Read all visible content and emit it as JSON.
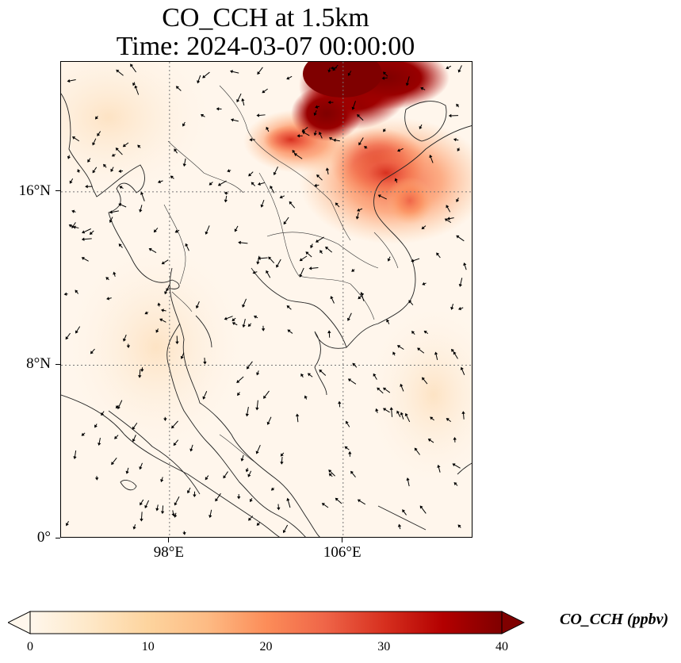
{
  "title": {
    "line1": "CO_CCH at 1.5km",
    "line2": "Time: 2024-03-07 00:00:00"
  },
  "map": {
    "lat_range": [
      0,
      22
    ],
    "lon_range": [
      93,
      112
    ],
    "lat_ticks": [
      {
        "value": 16,
        "label": "16°N"
      },
      {
        "value": 8,
        "label": "8°N"
      },
      {
        "value": 0,
        "label": "0°"
      }
    ],
    "lon_ticks": [
      {
        "value": 98,
        "label": "98°E"
      },
      {
        "value": 106,
        "label": "106°E"
      }
    ],
    "gridlines": "dotted",
    "layers": [
      "CO_CCH concentration field",
      "wind vectors",
      "coastlines",
      "country borders"
    ],
    "plume_max_region": "northern Vietnam / southern China coast"
  },
  "colorbar": {
    "label": "CO_CCH (ppbv)",
    "ticks": [
      "0",
      "10",
      "20",
      "30",
      "40"
    ],
    "min": 0,
    "max": 40,
    "colormap": "OrRd",
    "extend": "both",
    "colors": [
      "#fff7ec",
      "#fee8c8",
      "#fdd49e",
      "#fdbb84",
      "#fc8d59",
      "#ef6548",
      "#d7301f",
      "#b30000",
      "#7f0000"
    ]
  }
}
